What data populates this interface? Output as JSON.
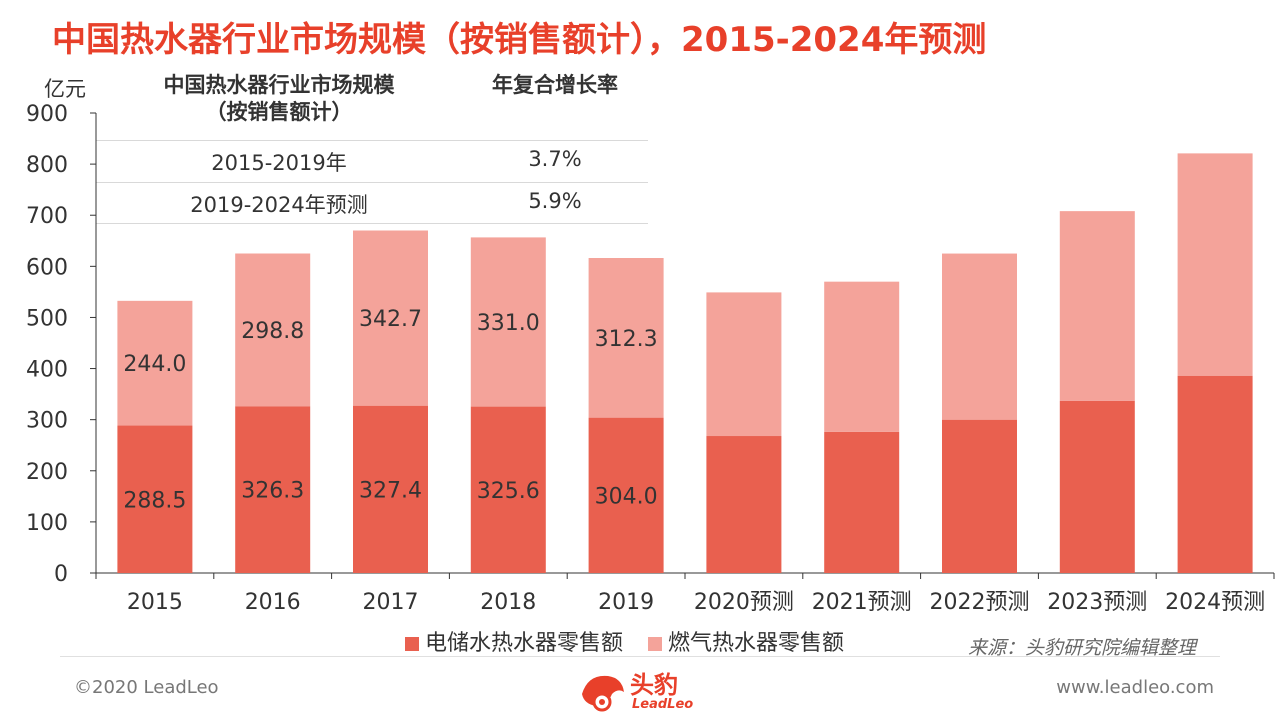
{
  "title": "中国热水器行业市场规模（按销售额计），2015-2024年预测",
  "unit_label": "亿元",
  "table": {
    "col1_header": "中国热水器行业市场规模\n（按销售额计）",
    "col2_header": "年复合增长率",
    "rows": [
      {
        "period": "2015-2019年",
        "cagr": "3.7%"
      },
      {
        "period": "2019-2024年预测",
        "cagr": "5.9%"
      }
    ]
  },
  "legend": {
    "electric": "电储水热水器零售额",
    "gas": "燃气热水器零售额"
  },
  "source": "来源：头豹研究院编辑整理",
  "footer": {
    "copyright": "©2020 LeadLeo",
    "website": "www.leadleo.com",
    "logo_text": "头豹",
    "logo_sub": "LeadLeo"
  },
  "colors": {
    "title": "#e8402a",
    "electric": "#e9604f",
    "gas": "#f4a39a"
  },
  "chart_data": {
    "type": "bar",
    "stacked": true,
    "categories": [
      "2015",
      "2016",
      "2017",
      "2018",
      "2019",
      "2020预测",
      "2021预测",
      "2022预测",
      "2023预测",
      "2024预测"
    ],
    "ylabel": "亿元",
    "ylim": [
      0,
      900
    ],
    "yticks": [
      0,
      100,
      200,
      300,
      400,
      500,
      600,
      700,
      800,
      900
    ],
    "series": [
      {
        "name": "电储水热水器零售额",
        "values": [
          288.5,
          326.3,
          327.4,
          325.6,
          304.0,
          268,
          276,
          300,
          337,
          386
        ],
        "labels": [
          "288.5",
          "326.3",
          "327.4",
          "325.6",
          "304.0",
          "",
          "",
          "",
          "",
          ""
        ]
      },
      {
        "name": "燃气热水器零售额",
        "values": [
          244.0,
          298.8,
          342.7,
          331.0,
          312.3,
          281,
          294,
          325,
          371,
          435
        ],
        "labels": [
          "244.0",
          "298.8",
          "342.7",
          "331.0",
          "312.3",
          "",
          "",
          "",
          "",
          ""
        ]
      }
    ]
  }
}
